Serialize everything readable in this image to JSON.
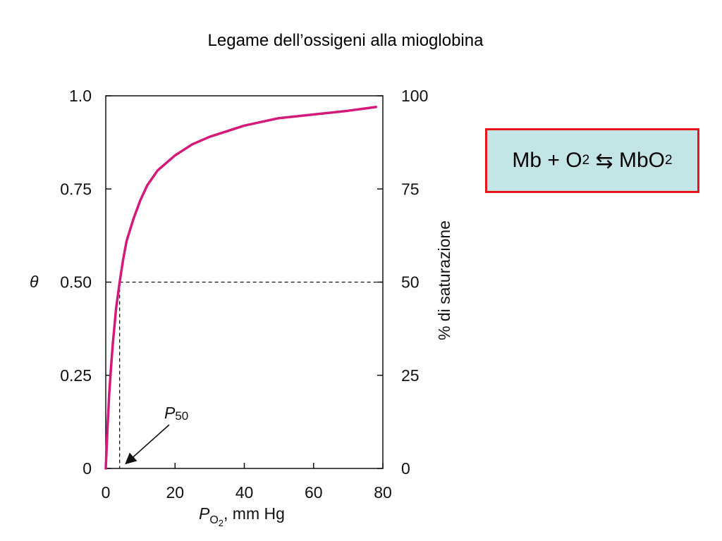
{
  "title": "Legame dell’ossigeni alla mioglobina",
  "equation": {
    "lhs_1": "Mb + O",
    "lhs_1_sub": "2",
    "arrow": " ⇆ ",
    "rhs": "MbO",
    "rhs_sub": "2",
    "border_color": "#e8141c",
    "background_color": "#c4e5e5"
  },
  "chart_data": {
    "type": "line",
    "title": "",
    "xlabel": "P_O2, mm Hg",
    "xlabel_parts": {
      "P": "P",
      "sub": "O",
      "subsub": "2",
      "rest": ", mm Hg"
    },
    "ylabel_left": "θ",
    "ylabel_right": "% di saturazione",
    "xlim": [
      0,
      80
    ],
    "ylim": [
      0,
      1.0
    ],
    "x_ticks": [
      0,
      20,
      40,
      60,
      80
    ],
    "x_tick_labels": [
      "0",
      "20",
      "40",
      "60",
      "80"
    ],
    "y_ticks_left": [
      0,
      0.25,
      0.5,
      0.75,
      1.0
    ],
    "y_tick_labels_left": [
      "0",
      "0.25",
      "0.50",
      "0.75",
      "1.0"
    ],
    "y_ticks_right": [
      0,
      25,
      50,
      75,
      100
    ],
    "y_tick_labels_right": [
      "0",
      "25",
      "50",
      "75",
      "100"
    ],
    "series": [
      {
        "color": "#d4197a",
        "x": [
          0,
          0.5,
          1,
          1.5,
          2,
          3,
          4,
          5,
          6,
          8,
          10,
          12,
          15,
          20,
          25,
          30,
          40,
          50,
          60,
          70,
          78
        ],
        "y": [
          0,
          0.11,
          0.2,
          0.27,
          0.33,
          0.43,
          0.5,
          0.56,
          0.61,
          0.67,
          0.72,
          0.76,
          0.8,
          0.84,
          0.87,
          0.89,
          0.92,
          0.94,
          0.95,
          0.96,
          0.97
        ]
      }
    ],
    "reference": {
      "x": 4,
      "y": 0.5
    },
    "annotation": {
      "text": "P",
      "sub": "50",
      "points_to_x": 4
    }
  }
}
